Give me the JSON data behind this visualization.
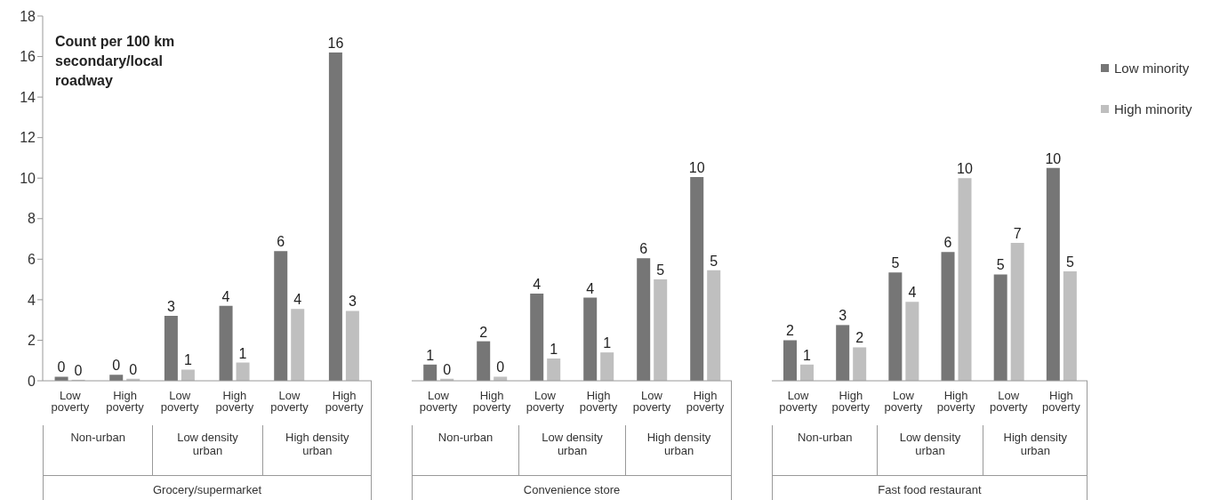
{
  "chart_data": [
    {
      "type": "bar",
      "ylabel": "Count per 100 km secondary/local roadway",
      "xlabel": "Grocery/supermarket",
      "annotations": [
        "Non-urban",
        "Low density urban",
        "High density urban"
      ],
      "categories": [
        "Low poverty",
        "High poverty",
        "Low poverty",
        "High poverty",
        "Low poverty",
        "High poverty"
      ],
      "series": [
        {
          "color": "#767676",
          "values": [
            0.2,
            0.3,
            3.2,
            3.7,
            6.4,
            16.2
          ],
          "value_labels": [
            "0",
            "0",
            "3",
            "4",
            "6",
            "16"
          ]
        },
        {
          "color": "#bfbfbf",
          "values": [
            0.05,
            0.1,
            0.55,
            0.9,
            3.55,
            3.45
          ],
          "value_labels": [
            "0",
            "0",
            "1",
            "1",
            "4",
            "3"
          ]
        }
      ],
      "ylim": [
        0,
        18
      ],
      "yticks": [
        0,
        2,
        4,
        6,
        8,
        10,
        12,
        14,
        16,
        18
      ],
      "grid": false,
      "legend": false
    },
    {
      "type": "bar",
      "xlabel": "Convenience store",
      "annotations": [
        "Non-urban",
        "Low density urban",
        "High density urban"
      ],
      "categories": [
        "Low poverty",
        "High poverty",
        "Low poverty",
        "High poverty",
        "Low poverty",
        "High poverty"
      ],
      "series": [
        {
          "color": "#767676",
          "values": [
            0.8,
            1.95,
            4.3,
            4.1,
            6.05,
            10.05
          ],
          "value_labels": [
            "1",
            "2",
            "4",
            "4",
            "6",
            "10"
          ]
        },
        {
          "color": "#bfbfbf",
          "values": [
            0.1,
            0.2,
            1.1,
            1.4,
            5.0,
            5.45
          ],
          "value_labels": [
            "0",
            "0",
            "1",
            "1",
            "5",
            "5"
          ]
        }
      ],
      "ylim": [
        0,
        18
      ],
      "tick_labels": "x",
      "grid": false,
      "legend": false
    },
    {
      "type": "bar",
      "xlabel": "Fast food restaurant",
      "annotations": [
        "Non-urban",
        "Low density urban",
        "High density urban"
      ],
      "categories": [
        "Low poverty",
        "High poverty",
        "Low poverty",
        "High poverty",
        "Low poverty",
        "High poverty"
      ],
      "series": [
        {
          "name": "Low minority",
          "color": "#767676",
          "values": [
            2.0,
            2.75,
            5.35,
            6.35,
            5.25,
            10.5
          ],
          "value_labels": [
            "2",
            "3",
            "5",
            "6",
            "5",
            "10"
          ]
        },
        {
          "name": "High minority",
          "color": "#bfbfbf",
          "values": [
            0.8,
            1.65,
            3.9,
            10.0,
            6.8,
            5.4
          ],
          "value_labels": [
            "1",
            "2",
            "4",
            "10",
            "7",
            "5"
          ]
        }
      ],
      "ylim": [
        0,
        18
      ],
      "tick_labels": "x",
      "grid": false,
      "legend": "top right"
    }
  ]
}
